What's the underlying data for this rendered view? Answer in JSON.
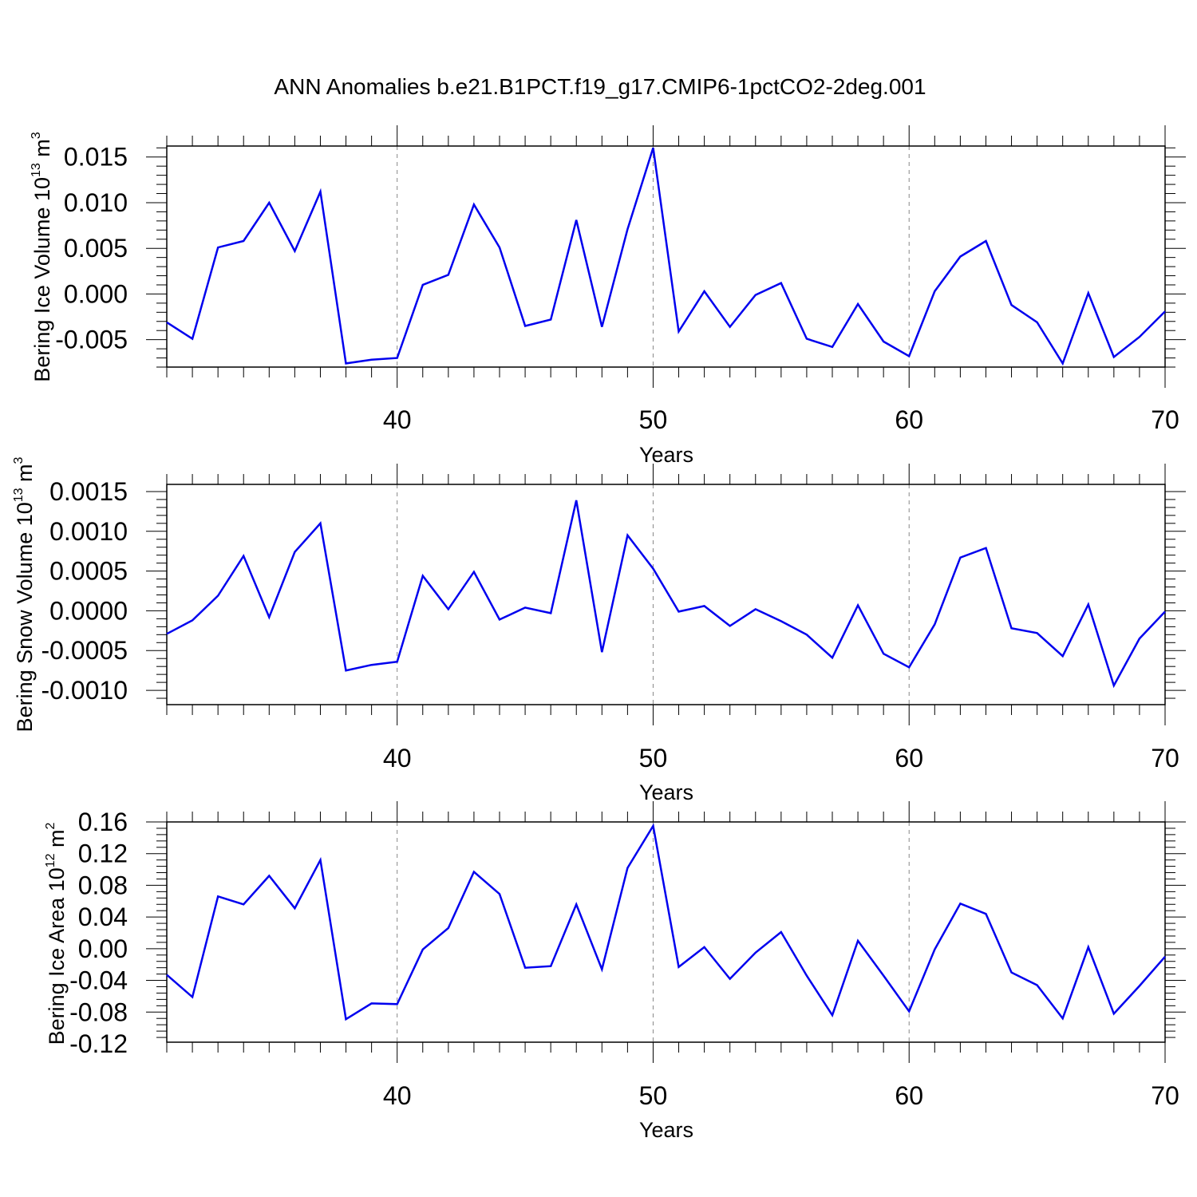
{
  "title": "ANN Anomalies b.e21.B1PCT.f19_g17.CMIP6-1pctCO2-2deg.001",
  "colors": {
    "line": "#0000ee",
    "grid": "#888888",
    "axis": "#000000"
  },
  "chart_data": [
    {
      "type": "line",
      "ylabel": {
        "main": "Bering Ice Volume 10",
        "sup": "13",
        "unit": " m",
        "unit_sup": "3"
      },
      "xlabel": "Years",
      "xlim": [
        31,
        70
      ],
      "ylim": [
        -0.008,
        0.0162
      ],
      "xticks": [
        40,
        50,
        60,
        70
      ],
      "yticks": [
        -0.005,
        0.0,
        0.005,
        0.01,
        0.015
      ],
      "ytick_labels": [
        "-0.005",
        "0.000",
        "0.005",
        "0.010",
        "0.015"
      ],
      "grid_x": [
        40,
        50,
        60
      ],
      "x": [
        31,
        32,
        33,
        34,
        35,
        36,
        37,
        38,
        39,
        40,
        41,
        42,
        43,
        44,
        45,
        46,
        47,
        48,
        49,
        50,
        51,
        52,
        53,
        54,
        55,
        56,
        57,
        58,
        59,
        60,
        61,
        62,
        63,
        64,
        65,
        66,
        67,
        68,
        69,
        70
      ],
      "values": [
        -0.0031,
        -0.0049,
        0.0051,
        0.0058,
        0.01,
        0.0047,
        0.0112,
        -0.0076,
        -0.0072,
        -0.007,
        0.001,
        0.0021,
        0.0098,
        0.0051,
        -0.0035,
        -0.0028,
        0.0081,
        -0.0036,
        0.0071,
        0.016,
        -0.0041,
        0.0003,
        -0.0036,
        -0.0001,
        0.0012,
        -0.0049,
        -0.0058,
        -0.0011,
        -0.0052,
        -0.0068,
        0.0003,
        0.0041,
        0.0058,
        -0.0012,
        -0.0031,
        -0.0076,
        0.0001,
        -0.0069,
        -0.0047,
        -0.0019
      ]
    },
    {
      "type": "line",
      "ylabel": {
        "main": "Bering Snow Volume 10",
        "sup": "13",
        "unit": " m",
        "unit_sup": "3"
      },
      "xlabel": "Years",
      "xlim": [
        31,
        70
      ],
      "ylim": [
        -0.00118,
        0.00159
      ],
      "xticks": [
        40,
        50,
        60,
        70
      ],
      "yticks": [
        -0.001,
        -0.0005,
        0.0,
        0.0005,
        0.001,
        0.0015
      ],
      "ytick_labels": [
        "-0.0010",
        "-0.0005",
        "0.0000",
        "0.0005",
        "0.0010",
        "0.0015"
      ],
      "grid_x": [
        40,
        50,
        60
      ],
      "x": [
        31,
        32,
        33,
        34,
        35,
        36,
        37,
        38,
        39,
        40,
        41,
        42,
        43,
        44,
        45,
        46,
        47,
        48,
        49,
        50,
        51,
        52,
        53,
        54,
        55,
        56,
        57,
        58,
        59,
        60,
        61,
        62,
        63,
        64,
        65,
        66,
        67,
        68,
        69,
        70
      ],
      "values": [
        -0.00029,
        -0.00012,
        0.00019,
        0.00069,
        -8e-05,
        0.00074,
        0.0011,
        -0.00075,
        -0.00068,
        -0.00064,
        0.00044,
        2e-05,
        0.00049,
        -0.00011,
        4e-05,
        -3e-05,
        0.00139,
        -0.00052,
        0.00095,
        0.00053,
        -1e-05,
        6e-05,
        -0.00019,
        2e-05,
        -0.00013,
        -0.0003,
        -0.00059,
        7e-05,
        -0.00054,
        -0.00071,
        -0.00017,
        0.00067,
        0.00079,
        -0.00022,
        -0.00028,
        -0.00057,
        8e-05,
        -0.00094,
        -0.00035,
        -1e-05
      ]
    },
    {
      "type": "line",
      "ylabel": {
        "main": "Bering Ice Area 10",
        "sup": "12",
        "unit": " m",
        "unit_sup": "2"
      },
      "xlabel": "Years",
      "xlim": [
        31,
        70
      ],
      "ylim": [
        -0.118,
        0.16
      ],
      "xticks": [
        40,
        50,
        60,
        70
      ],
      "yticks": [
        -0.12,
        -0.08,
        -0.04,
        0.0,
        0.04,
        0.08,
        0.12,
        0.16
      ],
      "ytick_labels": [
        "-0.12",
        "-0.08",
        "-0.04",
        "0.00",
        "0.04",
        "0.08",
        "0.12",
        "0.16"
      ],
      "grid_x": [
        40,
        50,
        60
      ],
      "x": [
        31,
        32,
        33,
        34,
        35,
        36,
        37,
        38,
        39,
        40,
        41,
        42,
        43,
        44,
        45,
        46,
        47,
        48,
        49,
        50,
        51,
        52,
        53,
        54,
        55,
        56,
        57,
        58,
        59,
        60,
        61,
        62,
        63,
        64,
        65,
        66,
        67,
        68,
        69,
        70
      ],
      "values": [
        -0.033,
        -0.061,
        0.066,
        0.056,
        0.092,
        0.051,
        0.112,
        -0.089,
        -0.069,
        -0.07,
        -0.001,
        0.026,
        0.097,
        0.069,
        -0.024,
        -0.022,
        0.056,
        -0.026,
        0.102,
        0.155,
        -0.023,
        0.002,
        -0.038,
        -0.005,
        0.021,
        -0.034,
        -0.084,
        0.01,
        -0.034,
        -0.079,
        -0.001,
        0.057,
        0.044,
        -0.03,
        -0.046,
        -0.088,
        0.002,
        -0.082,
        -0.047,
        -0.01
      ]
    }
  ]
}
